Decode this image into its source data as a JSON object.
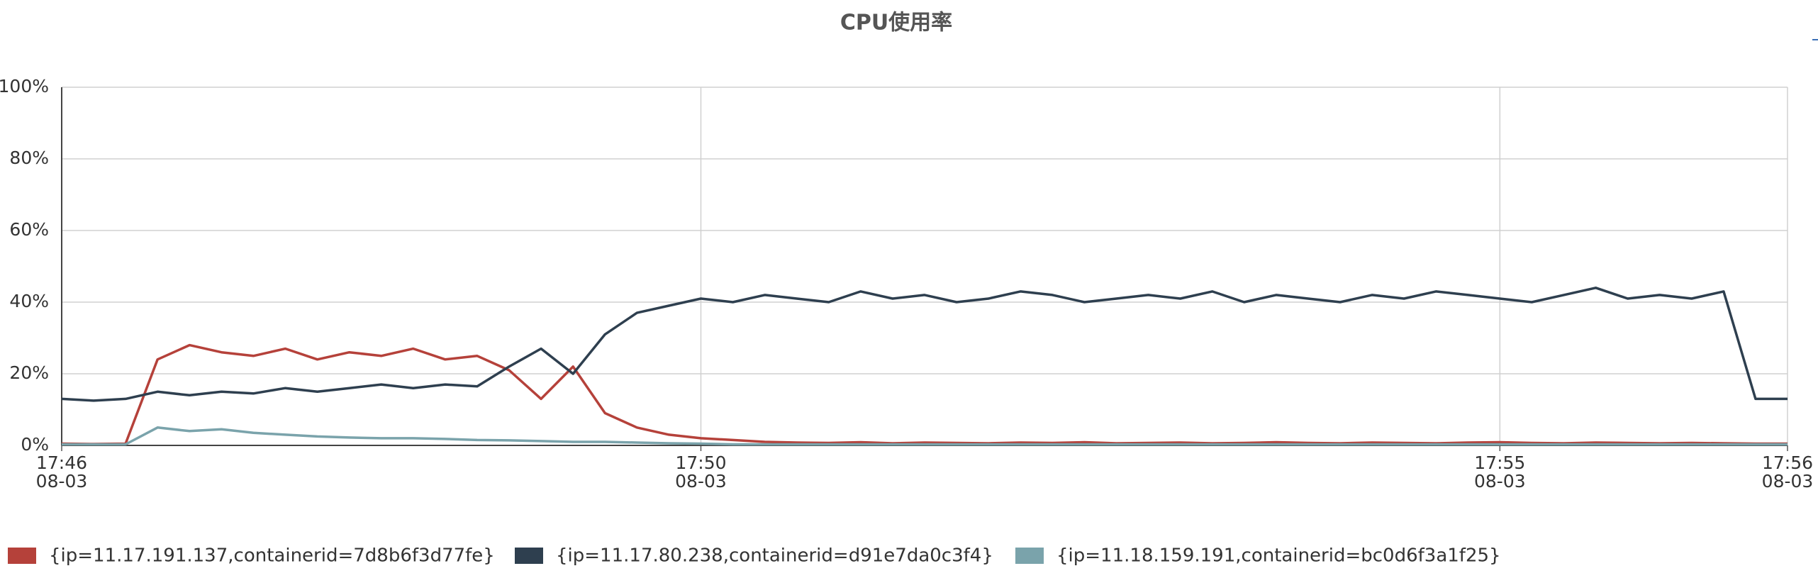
{
  "chart_data": {
    "type": "line",
    "title": "CPU使用率",
    "x": [
      1066,
      1066.2,
      1066.4,
      1066.6,
      1066.8,
      1067,
      1067.2,
      1067.4,
      1067.6,
      1067.8,
      1068,
      1068.2,
      1068.4,
      1068.6,
      1068.8,
      1069,
      1069.2,
      1069.4,
      1069.6,
      1069.8,
      1070,
      1070.2,
      1070.4,
      1070.6,
      1070.8,
      1071,
      1071.2,
      1071.4,
      1071.6,
      1071.8,
      1072,
      1072.2,
      1072.4,
      1072.6,
      1072.8,
      1073,
      1073.2,
      1073.4,
      1073.6,
      1073.8,
      1074,
      1074.2,
      1074.4,
      1074.6,
      1074.8,
      1075,
      1075.2,
      1075.4,
      1075.6,
      1075.8,
      1076,
      1076.2,
      1076.4,
      1076.6,
      1076.8
    ],
    "series": [
      {
        "name": "{ip=11.17.191.137,containerid=7d8b6f3d77fe}",
        "color": "#b5413a",
        "values": [
          0.5,
          0.4,
          0.5,
          24,
          28,
          26,
          25,
          27,
          24,
          26,
          25,
          27,
          24,
          25,
          21,
          13,
          22,
          9,
          5,
          3,
          2,
          1.5,
          1,
          0.8,
          0.7,
          0.9,
          0.6,
          0.8,
          0.7,
          0.6,
          0.8,
          0.7,
          0.9,
          0.6,
          0.7,
          0.8,
          0.6,
          0.7,
          0.9,
          0.7,
          0.6,
          0.8,
          0.7,
          0.6,
          0.8,
          0.9,
          0.7,
          0.6,
          0.8,
          0.7,
          0.6,
          0.7,
          0.6,
          0.5,
          0.5
        ]
      },
      {
        "name": "{ip=11.17.80.238,containerid=d91e7da0c3f4}",
        "color": "#2e3f4f",
        "values": [
          13,
          12.5,
          13,
          15,
          14,
          15,
          14.5,
          16,
          15,
          16,
          17,
          16,
          17,
          16.5,
          22,
          27,
          20,
          31,
          37,
          39,
          41,
          40,
          42,
          41,
          40,
          43,
          41,
          42,
          40,
          41,
          43,
          42,
          40,
          41,
          42,
          41,
          43,
          40,
          42,
          41,
          40,
          42,
          41,
          43,
          42,
          41,
          40,
          42,
          44,
          41,
          42,
          41,
          43,
          13,
          13
        ]
      },
      {
        "name": "{ip=11.18.159.191,containerid=bc0d6f3a1f25}",
        "color": "#7aa3ab",
        "values": [
          0.3,
          0.3,
          0.3,
          5,
          4,
          4.5,
          3.5,
          3,
          2.5,
          2.2,
          2,
          2,
          1.8,
          1.5,
          1.4,
          1.2,
          1,
          1,
          0.8,
          0.6,
          0.5,
          0.3,
          0.3,
          0.3,
          0.3,
          0.3,
          0.3,
          0.3,
          0.3,
          0.3,
          0.3,
          0.3,
          0.3,
          0.3,
          0.3,
          0.3,
          0.3,
          0.3,
          0.3,
          0.3,
          0.3,
          0.3,
          0.3,
          0.3,
          0.3,
          0.3,
          0.3,
          0.3,
          0.3,
          0.3,
          0.3,
          0.3,
          0.3,
          0.3,
          0.3
        ]
      }
    ],
    "xlim": [
      1066,
      1076.8
    ],
    "xticks": [
      {
        "value": 1066,
        "label": "17:46",
        "sublabel": "08-03"
      },
      {
        "value": 1070,
        "label": "17:50",
        "sublabel": "08-03"
      },
      {
        "value": 1075,
        "label": "17:55",
        "sublabel": "08-03"
      },
      {
        "value": 1076.8,
        "label": "17:56",
        "sublabel": "08-03"
      }
    ],
    "ylim": [
      0,
      100
    ],
    "yticks": [
      {
        "value": 0,
        "label": "0%"
      },
      {
        "value": 20,
        "label": "20%"
      },
      {
        "value": 40,
        "label": "40%"
      },
      {
        "value": 60,
        "label": "60%"
      },
      {
        "value": 80,
        "label": "80%"
      },
      {
        "value": 100,
        "label": "100%"
      }
    ],
    "grid": true
  }
}
